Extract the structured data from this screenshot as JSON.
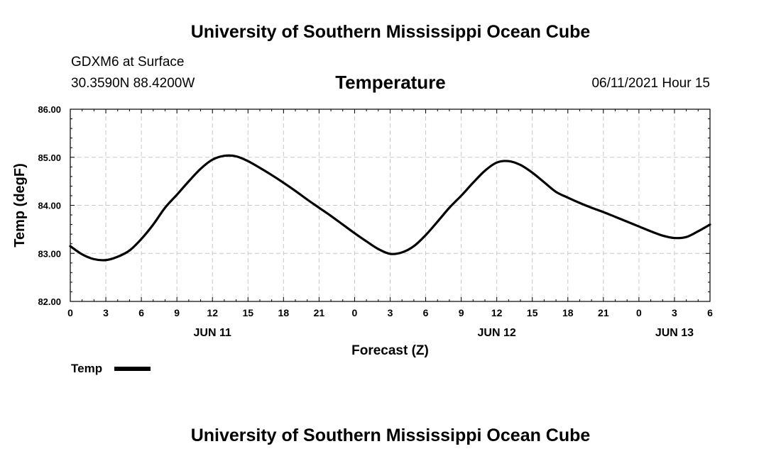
{
  "header": {
    "banner_top": "University of Southern Mississippi Ocean Cube",
    "banner_bottom": "University of Southern Mississippi Ocean Cube",
    "station": "GDXM6 at Surface",
    "coords": "30.3590N  88.4200W",
    "valid_time": "06/11/2021 Hour 15"
  },
  "chart_data": {
    "type": "line",
    "title": "Temperature",
    "xlabel": "Forecast (Z)",
    "ylabel": "Temp (degF)",
    "ylim": [
      82,
      86
    ],
    "xlim": [
      0,
      54
    ],
    "grid": true,
    "legend": "bottom-left",
    "y_ticks": [
      "82.00",
      "83.00",
      "84.00",
      "85.00",
      "86.00"
    ],
    "x_tick_labels": [
      "0",
      "3",
      "6",
      "9",
      "12",
      "15",
      "18",
      "21",
      "0",
      "3",
      "6",
      "9",
      "12",
      "15",
      "18",
      "21",
      "0",
      "3",
      "6"
    ],
    "date_labels": [
      {
        "hour": 12,
        "label": "JUN 11"
      },
      {
        "hour": 36,
        "label": "JUN 12"
      },
      {
        "hour": 51,
        "label": "JUN 13"
      }
    ],
    "series": [
      {
        "name": "Temp",
        "color": "#000000",
        "x": [
          0,
          1,
          2,
          3,
          4,
          5,
          6,
          7,
          8,
          9,
          10,
          11,
          12,
          13,
          14,
          15,
          16,
          17,
          18,
          19,
          20,
          21,
          22,
          23,
          24,
          25,
          26,
          27,
          28,
          29,
          30,
          31,
          32,
          33,
          34,
          35,
          36,
          37,
          38,
          39,
          40,
          41,
          42,
          43,
          44,
          45,
          46,
          47,
          48,
          49,
          50,
          51,
          52,
          53,
          54
        ],
        "values": [
          83.15,
          82.98,
          82.88,
          82.86,
          82.93,
          83.06,
          83.3,
          83.6,
          83.95,
          84.22,
          84.5,
          84.76,
          84.95,
          85.03,
          85.02,
          84.92,
          84.78,
          84.63,
          84.47,
          84.3,
          84.12,
          83.95,
          83.78,
          83.6,
          83.42,
          83.25,
          83.09,
          82.99,
          83.02,
          83.15,
          83.38,
          83.66,
          83.95,
          84.2,
          84.47,
          84.72,
          84.89,
          84.92,
          84.84,
          84.68,
          84.48,
          84.28,
          84.16,
          84.05,
          83.95,
          83.86,
          83.76,
          83.66,
          83.56,
          83.46,
          83.37,
          83.32,
          83.34,
          83.46,
          83.6
        ]
      }
    ]
  }
}
